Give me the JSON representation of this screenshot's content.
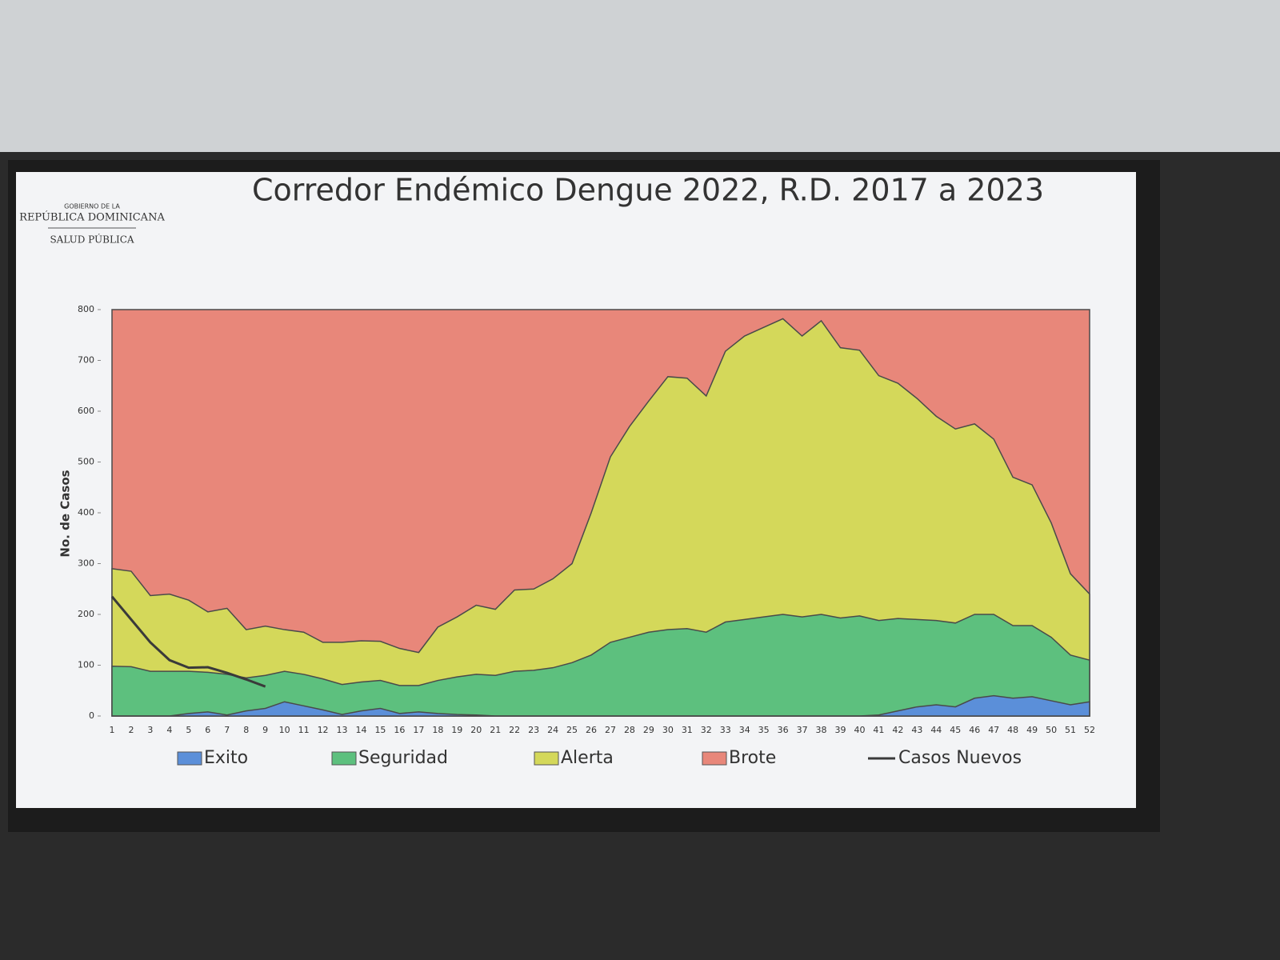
{
  "logo": {
    "line1": "GOBIERNO DE LA",
    "line2": "REPÚBLICA DOMINICANA",
    "line3": "SALUD PÚBLICA"
  },
  "chart_data": {
    "type": "area",
    "title": "Corredor Endémico Dengue 2022, R.D. 2017 a 2023",
    "y_label": "No. de Casos",
    "categories": [
      "1",
      "2",
      "3",
      "4",
      "5",
      "6",
      "7",
      "8",
      "9",
      "10",
      "11",
      "12",
      "13",
      "14",
      "15",
      "16",
      "17",
      "18",
      "19",
      "20",
      "21",
      "22",
      "23",
      "24",
      "25",
      "26",
      "27",
      "28",
      "29",
      "30",
      "31",
      "32",
      "33",
      "34",
      "35",
      "36",
      "37",
      "38",
      "39",
      "40",
      "41",
      "42",
      "43",
      "44",
      "45",
      "46",
      "47",
      "48",
      "49",
      "50",
      "51",
      "52"
    ],
    "ylim": [
      0,
      800
    ],
    "yticks": [
      0,
      100,
      200,
      300,
      400,
      500,
      600,
      700,
      800
    ],
    "legend": "bottom",
    "series": [
      {
        "name": "Exito",
        "color": "#5b8fd9",
        "values": [
          0,
          0,
          0,
          0,
          5,
          8,
          2,
          10,
          15,
          28,
          20,
          12,
          3,
          10,
          15,
          5,
          8,
          5,
          3,
          2,
          0,
          0,
          0,
          0,
          0,
          0,
          0,
          0,
          0,
          0,
          0,
          0,
          0,
          0,
          0,
          0,
          0,
          0,
          0,
          0,
          2,
          10,
          18,
          22,
          18,
          35,
          40,
          35,
          38,
          30,
          22,
          28
        ]
      },
      {
        "name": "Seguridad",
        "color": "#5dc07e",
        "values": [
          98,
          97,
          88,
          88,
          88,
          86,
          82,
          75,
          80,
          88,
          82,
          73,
          62,
          67,
          70,
          60,
          60,
          70,
          77,
          82,
          80,
          88,
          90,
          95,
          105,
          120,
          145,
          155,
          165,
          170,
          172,
          165,
          185,
          190,
          195,
          200,
          195,
          200,
          193,
          197,
          188,
          192,
          190,
          188,
          183,
          200,
          200,
          178,
          178,
          155,
          120,
          110
        ]
      },
      {
        "name": "Alerta",
        "color": "#d4d85a",
        "values": [
          290,
          285,
          237,
          240,
          228,
          205,
          212,
          170,
          177,
          170,
          165,
          145,
          145,
          148,
          147,
          133,
          125,
          175,
          195,
          218,
          210,
          248,
          250,
          270,
          300,
          400,
          510,
          570,
          620,
          668,
          665,
          630,
          718,
          748,
          765,
          782,
          748,
          778,
          725,
          720,
          670,
          655,
          625,
          590,
          565,
          575,
          545,
          470,
          455,
          380,
          280,
          240
        ]
      },
      {
        "name": "Brote",
        "color": "#e8877a",
        "values": [
          800,
          800,
          800,
          800,
          800,
          800,
          800,
          800,
          800,
          800,
          800,
          800,
          800,
          800,
          800,
          800,
          800,
          800,
          800,
          800,
          800,
          800,
          800,
          800,
          800,
          800,
          800,
          800,
          800,
          800,
          800,
          800,
          800,
          800,
          800,
          800,
          800,
          800,
          800,
          800,
          800,
          800,
          800,
          800,
          800,
          800,
          800,
          800,
          800,
          800,
          800,
          800
        ]
      },
      {
        "name": "Casos Nuevos",
        "color": "#3a3a3a",
        "style": "line",
        "values": [
          235,
          190,
          145,
          110,
          95,
          96,
          85,
          72,
          58,
          null,
          null,
          null,
          null,
          null,
          null,
          null,
          null,
          null,
          null,
          null,
          null,
          null,
          null,
          null,
          null,
          null,
          null,
          null,
          null,
          null,
          null,
          null,
          null,
          null,
          null,
          null,
          null,
          null,
          null,
          null,
          null,
          null,
          null,
          null,
          null,
          null,
          null,
          null,
          null,
          null,
          null,
          null
        ]
      }
    ]
  }
}
